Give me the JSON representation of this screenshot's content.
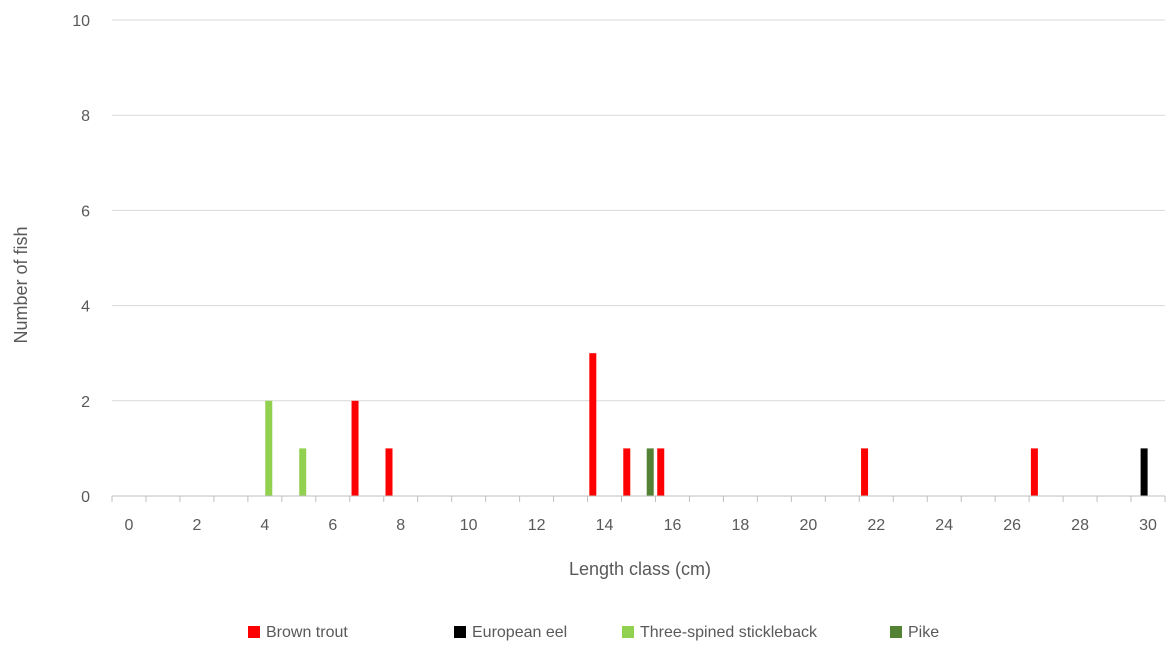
{
  "chart_data": {
    "type": "bar",
    "xlabel": "Length class (cm)",
    "ylabel": "Number of fish",
    "xlim": [
      -0.5,
      30.5
    ],
    "ylim": [
      0,
      10
    ],
    "yticks": [
      0,
      2,
      4,
      6,
      8,
      10
    ],
    "xticks": [
      0,
      2,
      4,
      6,
      8,
      10,
      12,
      14,
      16,
      18,
      20,
      22,
      24,
      26,
      28,
      30
    ],
    "grid": "horizontal",
    "legend_position": "bottom",
    "series": [
      {
        "name": "Brown trout",
        "color": "#ff0000",
        "points": [
          {
            "x": 7,
            "y": 2
          },
          {
            "x": 8,
            "y": 1
          },
          {
            "x": 14,
            "y": 3
          },
          {
            "x": 15,
            "y": 1
          },
          {
            "x": 16,
            "y": 1
          },
          {
            "x": 22,
            "y": 1
          },
          {
            "x": 27,
            "y": 1
          }
        ]
      },
      {
        "name": "European eel",
        "color": "#000000",
        "points": [
          {
            "x": 30,
            "y": 1
          }
        ]
      },
      {
        "name": "Three-spined stickleback",
        "color": "#92d050",
        "points": [
          {
            "x": 4,
            "y": 2
          },
          {
            "x": 5,
            "y": 1
          }
        ]
      },
      {
        "name": "Pike",
        "color": "#548235",
        "points": [
          {
            "x": 15,
            "y": 1
          }
        ]
      }
    ]
  }
}
